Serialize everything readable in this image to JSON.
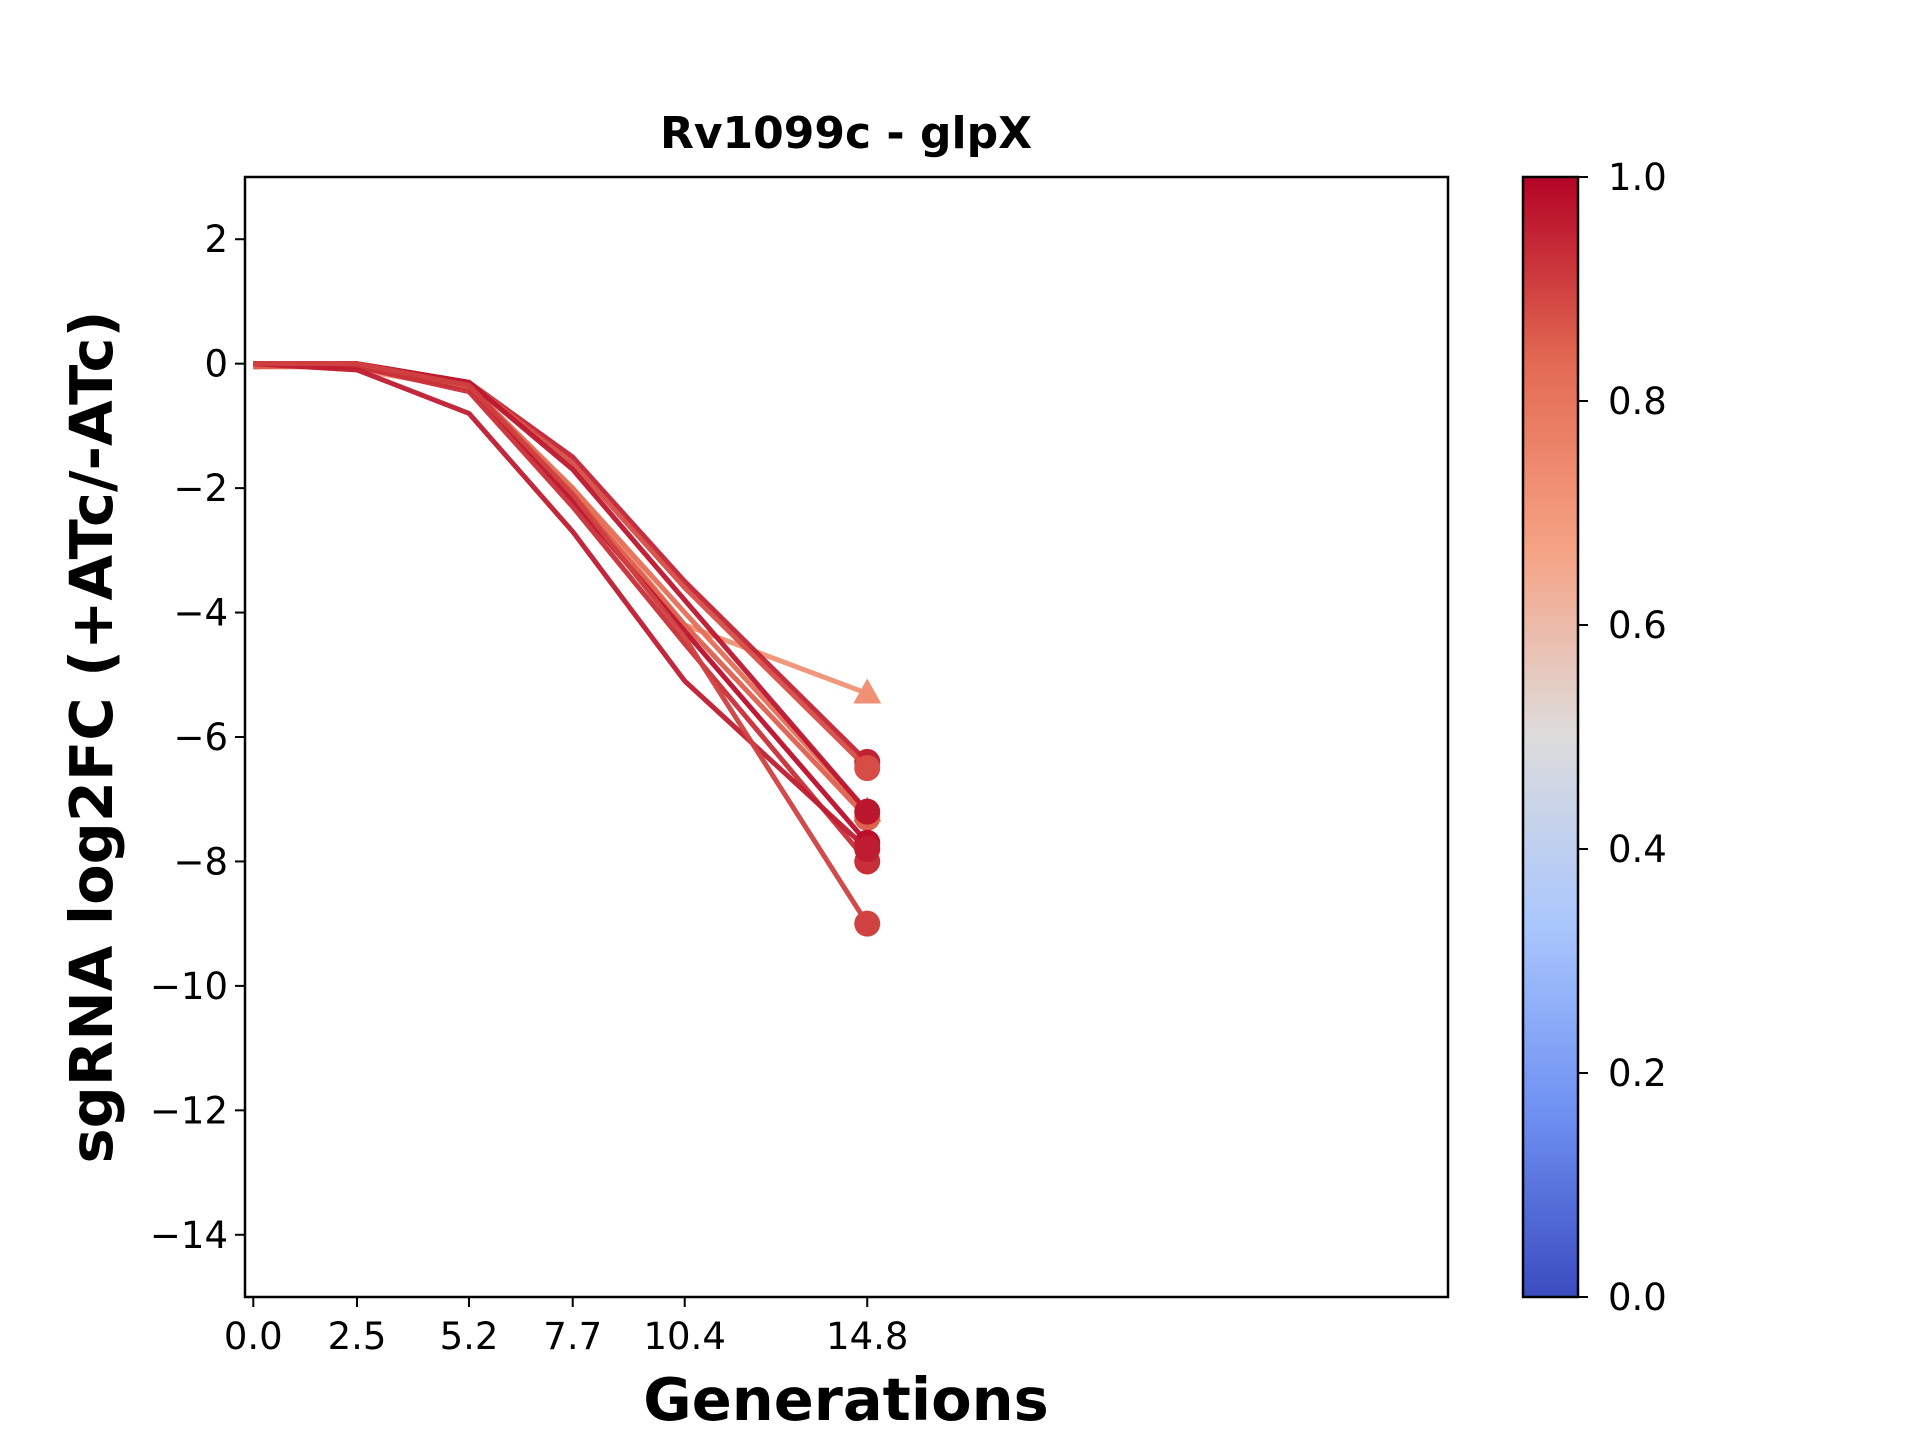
{
  "chart_data": {
    "type": "line",
    "title": "Rv1099c - glpX",
    "xlabel": "Generations",
    "ylabel": "sgRNA log2FC (+ATc/-ATc)",
    "x": [
      0.0,
      2.5,
      5.2,
      7.7,
      10.4,
      14.8
    ],
    "xtick_labels": [
      "0.0",
      "2.5",
      "5.2",
      "7.7",
      "10.4",
      "14.8"
    ],
    "xlim": [
      -0.2,
      28.8
    ],
    "ylim": [
      -15,
      3
    ],
    "yticks": [
      2,
      0,
      -2,
      -4,
      -6,
      -8,
      -10,
      -12,
      -14
    ],
    "ytick_labels": [
      "2",
      "0",
      "−2",
      "−4",
      "−6",
      "−8",
      "−10",
      "−12",
      "−14"
    ],
    "grid": false,
    "series": [
      {
        "values": [
          0.0,
          -0.1,
          -0.4,
          -2.0,
          -4.2,
          -5.3
        ],
        "color_value": 0.72,
        "marker": "triangle"
      },
      {
        "values": [
          -0.05,
          0.0,
          -0.3,
          -1.5,
          -3.5,
          -6.4
        ],
        "color_value": 0.95,
        "marker": "circle"
      },
      {
        "values": [
          -0.05,
          0.0,
          -0.3,
          -1.6,
          -3.6,
          -6.5
        ],
        "color_value": 0.88,
        "marker": "circle"
      },
      {
        "values": [
          0.0,
          -0.05,
          -0.35,
          -2.0,
          -4.0,
          -7.2
        ],
        "color_value": 0.82,
        "marker": "triangle"
      },
      {
        "values": [
          -0.05,
          -0.05,
          -0.4,
          -2.1,
          -4.2,
          -7.3
        ],
        "color_value": 0.85,
        "marker": "circle"
      },
      {
        "values": [
          0.0,
          0.0,
          -0.3,
          -1.7,
          -3.8,
          -7.2
        ],
        "color_value": 0.97,
        "marker": "circle"
      },
      {
        "values": [
          0.0,
          0.0,
          -0.35,
          -2.2,
          -4.3,
          -7.7
        ],
        "color_value": 0.98,
        "marker": "circle"
      },
      {
        "values": [
          0.0,
          -0.05,
          -0.45,
          -2.3,
          -4.5,
          -8.0
        ],
        "color_value": 0.93,
        "marker": "circle"
      },
      {
        "values": [
          0.0,
          -0.1,
          -0.8,
          -2.7,
          -5.1,
          -7.8
        ],
        "color_value": 0.96,
        "marker": "circle"
      },
      {
        "values": [
          0.0,
          0.0,
          -0.35,
          -2.1,
          -4.4,
          -9.0
        ],
        "color_value": 0.9,
        "marker": "circle"
      }
    ],
    "colorbar": {
      "ticks": [
        0.0,
        0.2,
        0.4,
        0.6,
        0.8,
        1.0
      ],
      "tick_labels": [
        "0.0",
        "0.2",
        "0.4",
        "0.6",
        "0.8",
        "1.0"
      ],
      "colormap": [
        "#3b4cc0",
        "#6f91f2",
        "#aac7fd",
        "#dddcdc",
        "#f6a385",
        "#e36a53",
        "#b40426"
      ]
    }
  }
}
